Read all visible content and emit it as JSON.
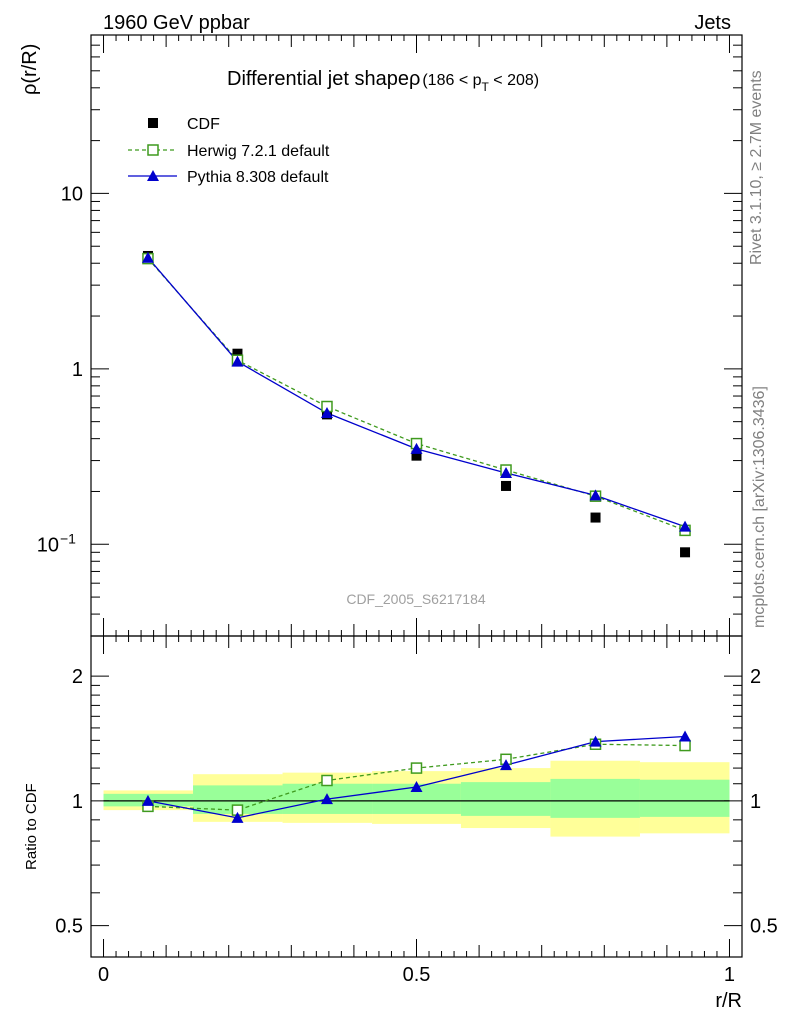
{
  "header": {
    "left": "1960 GeV ppbar",
    "right": "Jets"
  },
  "side_labels": {
    "rivet": "Rivet 3.1.10, ≥ 2.7M events",
    "mcplots": "mcplots.cern.ch [arXiv:1306.3436]"
  },
  "colors": {
    "cdf": "#000000",
    "herwig": "#3f9a1e",
    "pythia": "#0000cc",
    "band_outer": "#ffff99",
    "band_inner": "#99ff99"
  },
  "chart_data": [
    {
      "type": "line",
      "panel": "main",
      "title_main": "Differential jet shapeρ",
      "title_range": "(186 < p",
      "title_sub": "T",
      "title_end": " < 208)",
      "ylabel": "ρ(r/R)",
      "xlabel": "",
      "yscale": "log",
      "xlim": [
        -0.02,
        1.02
      ],
      "ylim": [
        0.03,
        80
      ],
      "yticks": [
        {
          "value": 10,
          "label": "10"
        },
        {
          "value": 1,
          "label": "1"
        },
        {
          "value": 0.1,
          "label": "10",
          "sup": "−1"
        }
      ],
      "watermark": "CDF_2005_S6217184",
      "legend_placement": "top-left",
      "x": [
        0.071,
        0.214,
        0.357,
        0.5,
        0.643,
        0.786,
        0.929
      ],
      "series": [
        {
          "name": "CDF",
          "marker": "filled-square",
          "values": [
            4.4,
            1.22,
            0.55,
            0.32,
            0.215,
            0.142,
            0.09
          ]
        },
        {
          "name": "Herwig 7.2.1 default",
          "marker": "open-square",
          "line": "dashed",
          "values": [
            4.25,
            1.12,
            0.61,
            0.375,
            0.265,
            0.188,
            0.12
          ]
        },
        {
          "name": "Pythia 8.308 default",
          "marker": "filled-triangle",
          "line": "solid",
          "values": [
            4.3,
            1.1,
            0.56,
            0.35,
            0.255,
            0.19,
            0.126
          ]
        }
      ]
    },
    {
      "type": "line",
      "panel": "ratio",
      "ylabel": "Ratio to CDF",
      "xlabel": "r/R",
      "yscale": "log",
      "xlim": [
        -0.02,
        1.02
      ],
      "ylim": [
        0.42,
        2.5
      ],
      "xticks": [
        {
          "value": 0,
          "label": "0"
        },
        {
          "value": 0.5,
          "label": "0.5"
        },
        {
          "value": 1,
          "label": "1"
        }
      ],
      "yticks": [
        {
          "value": 2,
          "label": "2"
        },
        {
          "value": 1,
          "label": "1"
        },
        {
          "value": 0.5,
          "label": "0.5"
        }
      ],
      "bands": [
        {
          "x0": 0.0,
          "x1": 0.143,
          "outer": [
            0.95,
            1.06
          ],
          "inner": [
            0.97,
            1.04
          ]
        },
        {
          "x0": 0.143,
          "x1": 0.286,
          "outer": [
            0.89,
            1.16
          ],
          "inner": [
            0.93,
            1.09
          ]
        },
        {
          "x0": 0.286,
          "x1": 0.429,
          "outer": [
            0.885,
            1.17
          ],
          "inner": [
            0.93,
            1.1
          ]
        },
        {
          "x0": 0.429,
          "x1": 0.571,
          "outer": [
            0.88,
            1.18
          ],
          "inner": [
            0.93,
            1.1
          ]
        },
        {
          "x0": 0.571,
          "x1": 0.714,
          "outer": [
            0.86,
            1.2
          ],
          "inner": [
            0.92,
            1.11
          ]
        },
        {
          "x0": 0.714,
          "x1": 0.857,
          "outer": [
            0.82,
            1.25
          ],
          "inner": [
            0.91,
            1.13
          ]
        },
        {
          "x0": 0.857,
          "x1": 1.0,
          "outer": [
            0.835,
            1.24
          ],
          "inner": [
            0.915,
            1.125
          ]
        }
      ],
      "x": [
        0.071,
        0.214,
        0.357,
        0.5,
        0.643,
        0.786,
        0.929
      ],
      "series": [
        {
          "name": "Herwig 7.2.1 default",
          "values": [
            0.97,
            0.95,
            1.12,
            1.2,
            1.26,
            1.37,
            1.36
          ]
        },
        {
          "name": "Pythia 8.308 default",
          "values": [
            1.0,
            0.91,
            1.01,
            1.08,
            1.22,
            1.39,
            1.43
          ]
        }
      ]
    }
  ]
}
